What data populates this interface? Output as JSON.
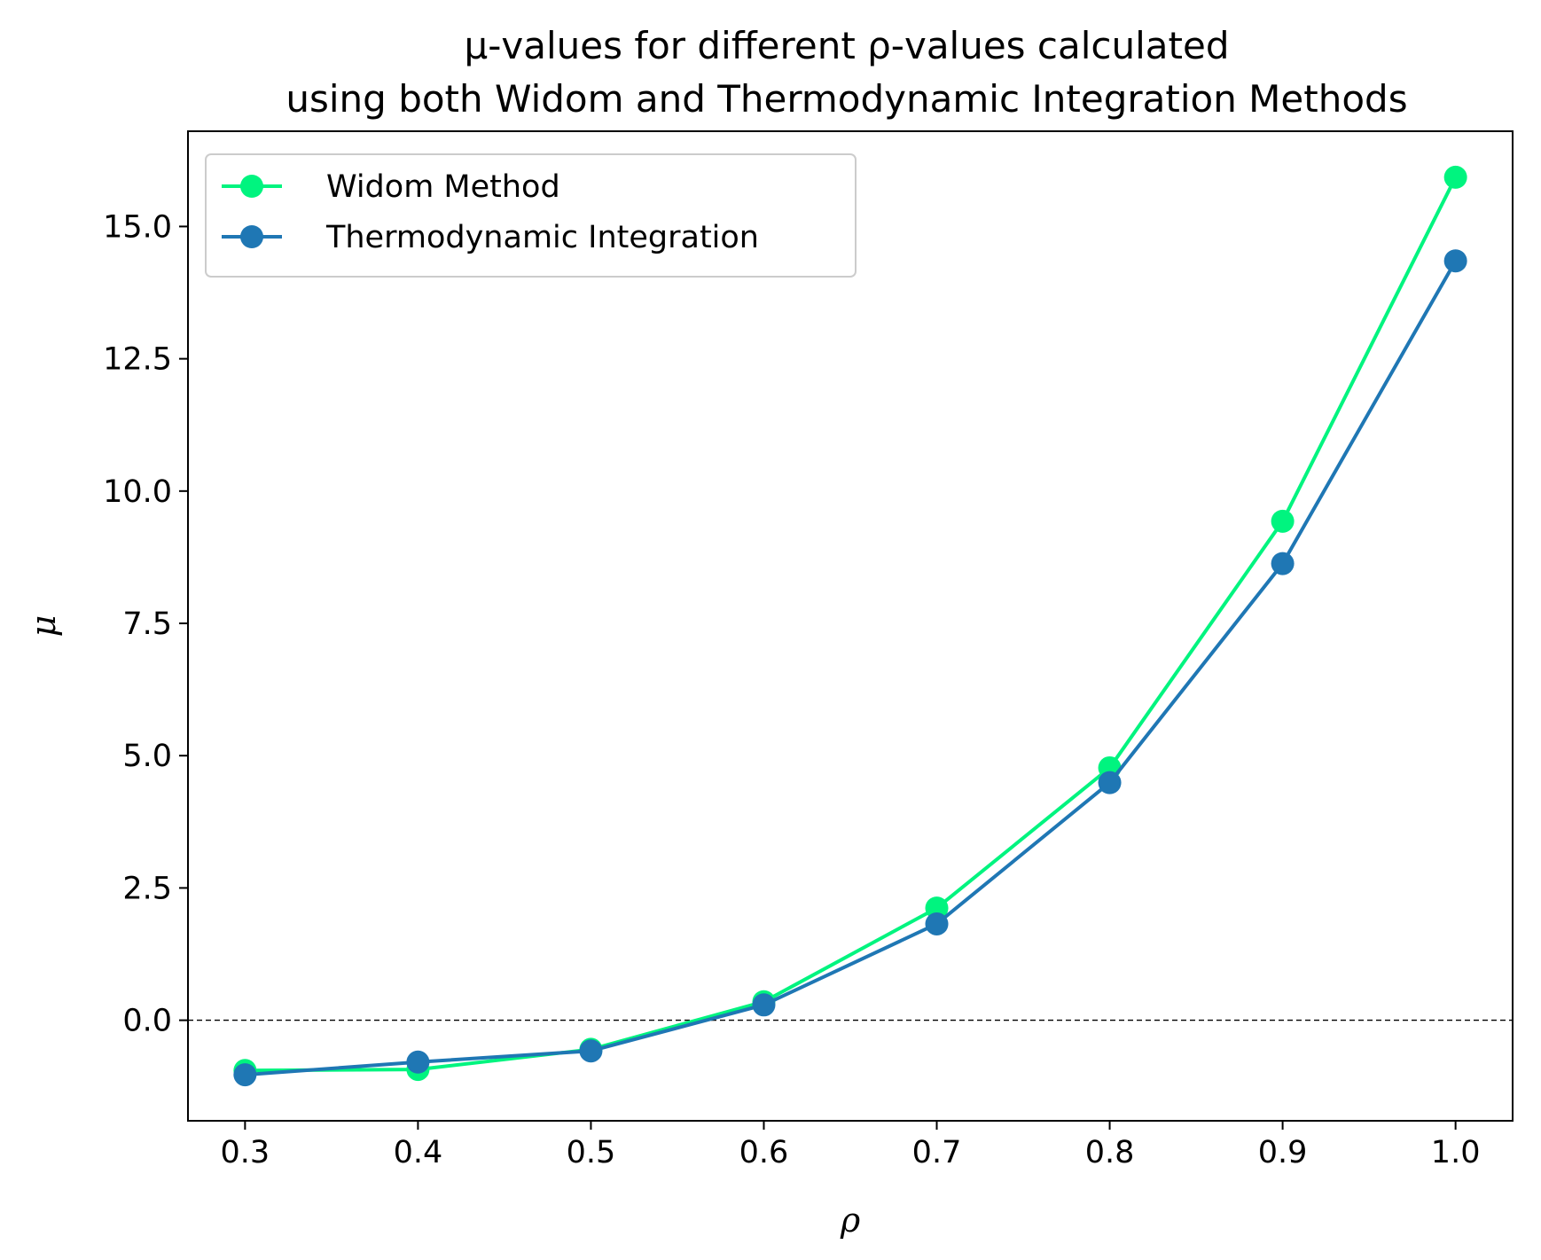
{
  "chart_data": {
    "type": "line",
    "title_line1": "μ-values for different ρ-values calculated",
    "title_line2": "using both Widom and Thermodynamic Integration Methods",
    "xlabel": "ρ",
    "ylabel": "μ",
    "xlim": [
      0.267,
      1.033
    ],
    "ylim": [
      -1.9,
      16.8
    ],
    "x_ticks": [
      0.3,
      0.4,
      0.5,
      0.6,
      0.7,
      0.8,
      0.9,
      1.0
    ],
    "x_tick_labels": [
      "0.3",
      "0.4",
      "0.5",
      "0.6",
      "0.7",
      "0.8",
      "0.9",
      "1.0"
    ],
    "y_ticks": [
      0,
      2.5,
      5,
      7.5,
      10,
      12.5,
      15
    ],
    "y_tick_labels": [
      "0.0",
      "2.5",
      "5.0",
      "7.5",
      "10.0",
      "12.5",
      "15.0"
    ],
    "reference_line": {
      "y": 0,
      "style": "dashed",
      "color": "#000000"
    },
    "legend_position": "upper-left",
    "x": [
      0.3,
      0.4,
      0.5,
      0.6,
      0.7,
      0.8,
      0.9,
      1.0
    ],
    "series": [
      {
        "name": "Widom Method",
        "color": "#00F47F",
        "values": [
          -0.95,
          -0.93,
          -0.55,
          0.35,
          2.12,
          4.77,
          9.43,
          15.93
        ]
      },
      {
        "name": "Thermodynamic Integration",
        "color": "#1F77B4",
        "values": [
          -1.03,
          -0.79,
          -0.58,
          0.29,
          1.82,
          4.49,
          8.63,
          14.35
        ]
      }
    ]
  }
}
